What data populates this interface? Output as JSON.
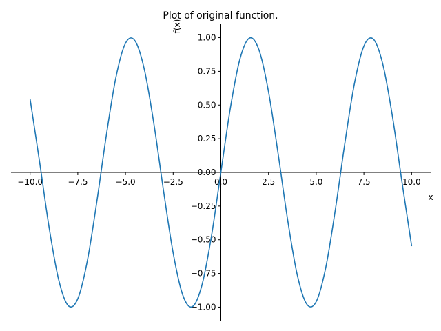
{
  "chart_data": {
    "type": "line",
    "title": "Plot of original function.",
    "xlabel": "x",
    "ylabel": "f(x)",
    "xlim": [
      -11.0,
      11.0
    ],
    "ylim": [
      -1.1,
      1.1
    ],
    "grid": false,
    "x_ticks": [
      -10.0,
      -7.5,
      -5.0,
      -2.5,
      0.0,
      2.5,
      5.0,
      7.5,
      10.0
    ],
    "x_tick_labels": [
      "−10.0",
      "−7.5",
      "−5.0",
      "−2.5",
      "0.0",
      "2.5",
      "5.0",
      "7.5",
      "10.0"
    ],
    "y_ticks": [
      -1.0,
      -0.75,
      -0.5,
      -0.25,
      0.0,
      0.25,
      0.5,
      0.75,
      1.0
    ],
    "y_tick_labels": [
      "−1.00",
      "−0.75",
      "−0.50",
      "−0.25",
      "0.00",
      "0.25",
      "0.50",
      "0.75",
      "1.00"
    ],
    "series": [
      {
        "color": "#1f77b4",
        "x": [
          -10.0,
          -9.5,
          -9.0,
          -8.5,
          -8.0,
          -7.5,
          -7.0,
          -6.5,
          -6.0,
          -5.5,
          -5.0,
          -4.5,
          -4.0,
          -3.5,
          -3.0,
          -2.5,
          -2.0,
          -1.5,
          -1.0,
          -0.5,
          0.0,
          0.5,
          1.0,
          1.5,
          2.0,
          2.5,
          3.0,
          3.5,
          4.0,
          4.5,
          5.0,
          5.5,
          6.0,
          6.5,
          7.0,
          7.5,
          8.0,
          8.5,
          9.0,
          9.5,
          10.0
        ],
        "y": [
          0.544,
          0.075,
          -0.412,
          -0.798,
          -0.989,
          -0.938,
          -0.657,
          -0.215,
          0.279,
          0.706,
          0.959,
          0.977,
          0.757,
          0.351,
          -0.141,
          -0.598,
          -0.909,
          -0.997,
          -0.841,
          -0.479,
          0.0,
          0.479,
          0.841,
          0.997,
          0.909,
          0.598,
          0.141,
          -0.351,
          -0.757,
          -0.977,
          -0.959,
          -0.706,
          -0.279,
          0.215,
          0.657,
          0.938,
          0.989,
          0.798,
          0.412,
          -0.075,
          -0.544
        ]
      }
    ]
  }
}
